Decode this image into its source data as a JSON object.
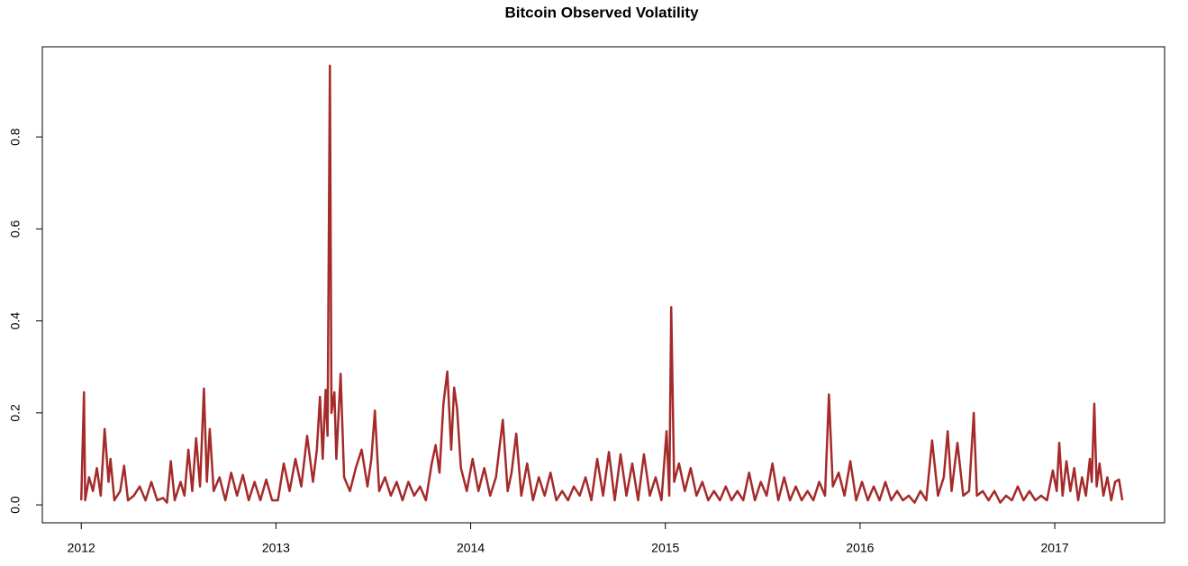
{
  "chart_data": {
    "type": "line",
    "title": "Bitcoin Observed Volatility",
    "xlim": [
      2011.8,
      2017.564
    ],
    "xticks": [
      2012,
      2013,
      2014,
      2015,
      2016,
      2017
    ],
    "ylim": [
      -0.039,
      0.996
    ],
    "yticks": [
      {
        "value": 0,
        "label": "0.0"
      },
      0.2,
      0.4,
      0.6,
      0.8
    ],
    "series": [
      {
        "color": "#a52a2a",
        "x": [
          2012.0,
          2012.014,
          2012.02,
          2012.04,
          2012.06,
          2012.08,
          2012.1,
          2012.12,
          2012.14,
          2012.15,
          2012.17,
          2012.2,
          2012.22,
          2012.24,
          2012.27,
          2012.3,
          2012.33,
          2012.36,
          2012.39,
          2012.42,
          2012.44,
          2012.46,
          2012.48,
          2012.51,
          2012.53,
          2012.55,
          2012.57,
          2012.59,
          2012.61,
          2012.63,
          2012.645,
          2012.66,
          2012.68,
          2012.71,
          2012.74,
          2012.77,
          2012.8,
          2012.83,
          2012.86,
          2012.89,
          2012.92,
          2012.95,
          2012.98,
          2013.01,
          2013.04,
          2013.07,
          2013.1,
          2013.13,
          2013.16,
          2013.19,
          2013.21,
          2013.226,
          2013.24,
          2013.255,
          2013.265,
          2013.277,
          2013.285,
          2013.3,
          2013.31,
          2013.332,
          2013.35,
          2013.38,
          2013.41,
          2013.44,
          2013.47,
          2013.49,
          2013.508,
          2013.53,
          2013.56,
          2013.59,
          2013.62,
          2013.65,
          2013.68,
          2013.71,
          2013.74,
          2013.77,
          2013.8,
          2013.82,
          2013.84,
          2013.86,
          2013.88,
          2013.9,
          2013.915,
          2013.93,
          2013.95,
          2013.98,
          2014.01,
          2014.04,
          2014.07,
          2014.1,
          2014.13,
          2014.165,
          2014.19,
          2014.21,
          2014.234,
          2014.26,
          2014.29,
          2014.32,
          2014.35,
          2014.38,
          2014.41,
          2014.44,
          2014.47,
          2014.5,
          2014.53,
          2014.56,
          2014.59,
          2014.62,
          2014.65,
          2014.68,
          2014.71,
          2014.74,
          2014.77,
          2014.8,
          2014.83,
          2014.86,
          2014.89,
          2014.92,
          2014.95,
          2014.98,
          2015.006,
          2015.02,
          2015.03,
          2015.045,
          2015.07,
          2015.1,
          2015.13,
          2015.16,
          2015.19,
          2015.22,
          2015.25,
          2015.28,
          2015.31,
          2015.34,
          2015.37,
          2015.4,
          2015.43,
          2015.46,
          2015.49,
          2015.52,
          2015.55,
          2015.58,
          2015.61,
          2015.64,
          2015.67,
          2015.7,
          2015.73,
          2015.76,
          2015.79,
          2015.82,
          2015.84,
          2015.86,
          2015.89,
          2015.92,
          2015.95,
          2015.98,
          2016.01,
          2016.04,
          2016.07,
          2016.1,
          2016.13,
          2016.16,
          2016.19,
          2016.22,
          2016.25,
          2016.28,
          2016.31,
          2016.34,
          2016.37,
          2016.4,
          2016.43,
          2016.45,
          2016.47,
          2016.5,
          2016.53,
          2016.56,
          2016.584,
          2016.6,
          2016.63,
          2016.66,
          2016.69,
          2016.72,
          2016.75,
          2016.78,
          2016.81,
          2016.84,
          2016.87,
          2016.9,
          2016.93,
          2016.96,
          2016.99,
          2017.01,
          2017.023,
          2017.04,
          2017.06,
          2017.08,
          2017.1,
          2017.12,
          2017.14,
          2017.16,
          2017.18,
          2017.19,
          2017.203,
          2017.215,
          2017.23,
          2017.25,
          2017.27,
          2017.29,
          2017.31,
          2017.33,
          2017.347
        ],
        "values": [
          0.01,
          0.245,
          0.01,
          0.06,
          0.03,
          0.08,
          0.02,
          0.165,
          0.05,
          0.1,
          0.01,
          0.03,
          0.085,
          0.01,
          0.02,
          0.04,
          0.01,
          0.05,
          0.01,
          0.015,
          0.005,
          0.095,
          0.01,
          0.05,
          0.02,
          0.12,
          0.03,
          0.145,
          0.04,
          0.253,
          0.05,
          0.165,
          0.03,
          0.06,
          0.01,
          0.07,
          0.02,
          0.065,
          0.01,
          0.05,
          0.01,
          0.055,
          0.01,
          0.01,
          0.09,
          0.03,
          0.1,
          0.04,
          0.15,
          0.05,
          0.12,
          0.235,
          0.1,
          0.25,
          0.15,
          0.955,
          0.2,
          0.245,
          0.1,
          0.285,
          0.06,
          0.03,
          0.08,
          0.12,
          0.04,
          0.1,
          0.205,
          0.03,
          0.06,
          0.02,
          0.05,
          0.01,
          0.05,
          0.02,
          0.04,
          0.01,
          0.09,
          0.13,
          0.07,
          0.22,
          0.29,
          0.12,
          0.255,
          0.21,
          0.08,
          0.03,
          0.1,
          0.03,
          0.08,
          0.02,
          0.06,
          0.185,
          0.03,
          0.07,
          0.155,
          0.02,
          0.09,
          0.01,
          0.06,
          0.02,
          0.07,
          0.01,
          0.03,
          0.01,
          0.04,
          0.02,
          0.06,
          0.01,
          0.1,
          0.02,
          0.115,
          0.01,
          0.11,
          0.02,
          0.09,
          0.01,
          0.11,
          0.02,
          0.06,
          0.01,
          0.16,
          0.02,
          0.43,
          0.05,
          0.09,
          0.03,
          0.08,
          0.02,
          0.05,
          0.01,
          0.03,
          0.01,
          0.04,
          0.01,
          0.03,
          0.01,
          0.07,
          0.01,
          0.05,
          0.02,
          0.09,
          0.01,
          0.06,
          0.01,
          0.04,
          0.01,
          0.03,
          0.01,
          0.05,
          0.02,
          0.24,
          0.04,
          0.07,
          0.02,
          0.095,
          0.01,
          0.05,
          0.01,
          0.04,
          0.01,
          0.05,
          0.01,
          0.03,
          0.01,
          0.02,
          0.005,
          0.03,
          0.01,
          0.14,
          0.02,
          0.06,
          0.16,
          0.03,
          0.135,
          0.02,
          0.03,
          0.2,
          0.02,
          0.03,
          0.01,
          0.03,
          0.005,
          0.02,
          0.01,
          0.04,
          0.01,
          0.03,
          0.01,
          0.02,
          0.01,
          0.075,
          0.03,
          0.135,
          0.02,
          0.095,
          0.03,
          0.08,
          0.01,
          0.06,
          0.02,
          0.1,
          0.05,
          0.22,
          0.04,
          0.09,
          0.02,
          0.06,
          0.01,
          0.05,
          0.055,
          0.01
        ]
      }
    ]
  }
}
